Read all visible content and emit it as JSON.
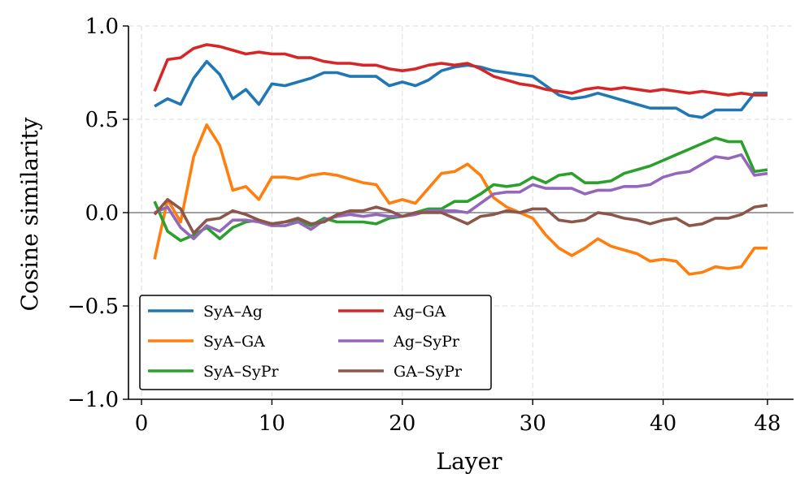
{
  "chart_data": {
    "type": "line",
    "title": "",
    "xlabel": "Layer",
    "ylabel": "Cosine similarity",
    "xlim": [
      -1,
      50
    ],
    "ylim": [
      -1.0,
      1.0
    ],
    "grid": true,
    "legend_position": "bottom-left",
    "x_ticks": [
      0,
      10,
      20,
      30,
      40,
      48
    ],
    "x_tick_labels": [
      "0",
      "10",
      "20",
      "30",
      "40",
      "48"
    ],
    "y_ticks": [
      -1.0,
      -0.5,
      0.0,
      0.5,
      1.0
    ],
    "y_tick_labels": [
      "−1.0",
      "−0.5",
      "0.0",
      "0.5",
      "1.0"
    ],
    "zero_line": 0.0,
    "x": [
      1,
      2,
      3,
      4,
      5,
      6,
      7,
      8,
      9,
      10,
      11,
      12,
      13,
      14,
      15,
      16,
      17,
      18,
      19,
      20,
      21,
      22,
      23,
      24,
      25,
      26,
      27,
      28,
      29,
      30,
      31,
      32,
      33,
      34,
      35,
      36,
      37,
      38,
      39,
      40,
      41,
      42,
      43,
      44,
      45,
      46,
      47,
      48
    ],
    "series": [
      {
        "name": "SyA–Ag",
        "color": "#1f77b4",
        "values": [
          0.57,
          0.61,
          0.58,
          0.72,
          0.81,
          0.74,
          0.61,
          0.66,
          0.58,
          0.69,
          0.68,
          0.7,
          0.72,
          0.75,
          0.75,
          0.73,
          0.73,
          0.73,
          0.68,
          0.7,
          0.68,
          0.71,
          0.76,
          0.78,
          0.79,
          0.78,
          0.76,
          0.75,
          0.74,
          0.73,
          0.68,
          0.63,
          0.61,
          0.62,
          0.64,
          0.62,
          0.6,
          0.58,
          0.56,
          0.56,
          0.56,
          0.52,
          0.51,
          0.55,
          0.55,
          0.55,
          0.64,
          0.64
        ]
      },
      {
        "name": "SyA–GA",
        "color": "#ff7f0e",
        "values": [
          -0.25,
          0.07,
          -0.05,
          0.3,
          0.47,
          0.36,
          0.12,
          0.14,
          0.07,
          0.19,
          0.19,
          0.18,
          0.2,
          0.21,
          0.2,
          0.18,
          0.16,
          0.15,
          0.05,
          0.07,
          0.05,
          0.13,
          0.21,
          0.22,
          0.26,
          0.2,
          0.08,
          0.03,
          0.0,
          -0.03,
          -0.12,
          -0.19,
          -0.23,
          -0.19,
          -0.14,
          -0.18,
          -0.2,
          -0.22,
          -0.26,
          -0.25,
          -0.26,
          -0.33,
          -0.32,
          -0.29,
          -0.3,
          -0.29,
          -0.19,
          -0.19
        ]
      },
      {
        "name": "SyA–SyPr",
        "color": "#2ca02c",
        "values": [
          0.06,
          -0.1,
          -0.15,
          -0.12,
          -0.08,
          -0.14,
          -0.08,
          -0.05,
          -0.04,
          -0.06,
          -0.05,
          -0.04,
          -0.07,
          -0.03,
          -0.05,
          -0.05,
          -0.05,
          -0.06,
          -0.03,
          -0.02,
          0.0,
          0.02,
          0.02,
          0.06,
          0.06,
          0.1,
          0.15,
          0.14,
          0.15,
          0.19,
          0.16,
          0.2,
          0.21,
          0.16,
          0.16,
          0.17,
          0.21,
          0.23,
          0.25,
          0.28,
          0.31,
          0.34,
          0.37,
          0.4,
          0.38,
          0.38,
          0.22,
          0.23
        ]
      },
      {
        "name": "Ag–GA",
        "color": "#d62728",
        "values": [
          0.65,
          0.82,
          0.83,
          0.88,
          0.9,
          0.89,
          0.87,
          0.85,
          0.86,
          0.85,
          0.85,
          0.83,
          0.83,
          0.81,
          0.8,
          0.8,
          0.79,
          0.79,
          0.77,
          0.76,
          0.77,
          0.79,
          0.8,
          0.79,
          0.8,
          0.77,
          0.73,
          0.71,
          0.69,
          0.68,
          0.66,
          0.65,
          0.64,
          0.66,
          0.67,
          0.66,
          0.67,
          0.66,
          0.65,
          0.66,
          0.65,
          0.64,
          0.65,
          0.64,
          0.63,
          0.64,
          0.63,
          0.63
        ]
      },
      {
        "name": "Ag–SyPr",
        "color": "#9467bd",
        "values": [
          0.0,
          0.03,
          -0.08,
          -0.14,
          -0.07,
          -0.1,
          -0.04,
          -0.04,
          -0.05,
          -0.07,
          -0.07,
          -0.05,
          -0.09,
          -0.04,
          -0.02,
          -0.01,
          -0.02,
          -0.01,
          -0.02,
          -0.02,
          -0.01,
          0.01,
          0.01,
          0.01,
          0.0,
          0.05,
          0.1,
          0.11,
          0.11,
          0.15,
          0.13,
          0.13,
          0.13,
          0.1,
          0.12,
          0.12,
          0.14,
          0.14,
          0.15,
          0.19,
          0.21,
          0.22,
          0.26,
          0.3,
          0.29,
          0.31,
          0.2,
          0.21
        ]
      },
      {
        "name": "GA–SyPr",
        "color": "#8c564b",
        "values": [
          -0.01,
          0.07,
          0.02,
          -0.11,
          -0.04,
          -0.03,
          0.01,
          -0.01,
          -0.04,
          -0.06,
          -0.05,
          -0.03,
          -0.06,
          -0.05,
          -0.01,
          0.01,
          0.01,
          0.03,
          0.01,
          -0.02,
          0.0,
          0.0,
          0.0,
          -0.03,
          -0.06,
          -0.02,
          -0.01,
          0.01,
          0.0,
          0.02,
          0.02,
          -0.04,
          -0.05,
          -0.04,
          0.0,
          -0.01,
          -0.03,
          -0.04,
          -0.06,
          -0.04,
          -0.03,
          -0.07,
          -0.06,
          -0.03,
          -0.03,
          -0.01,
          0.03,
          0.04
        ]
      }
    ]
  }
}
